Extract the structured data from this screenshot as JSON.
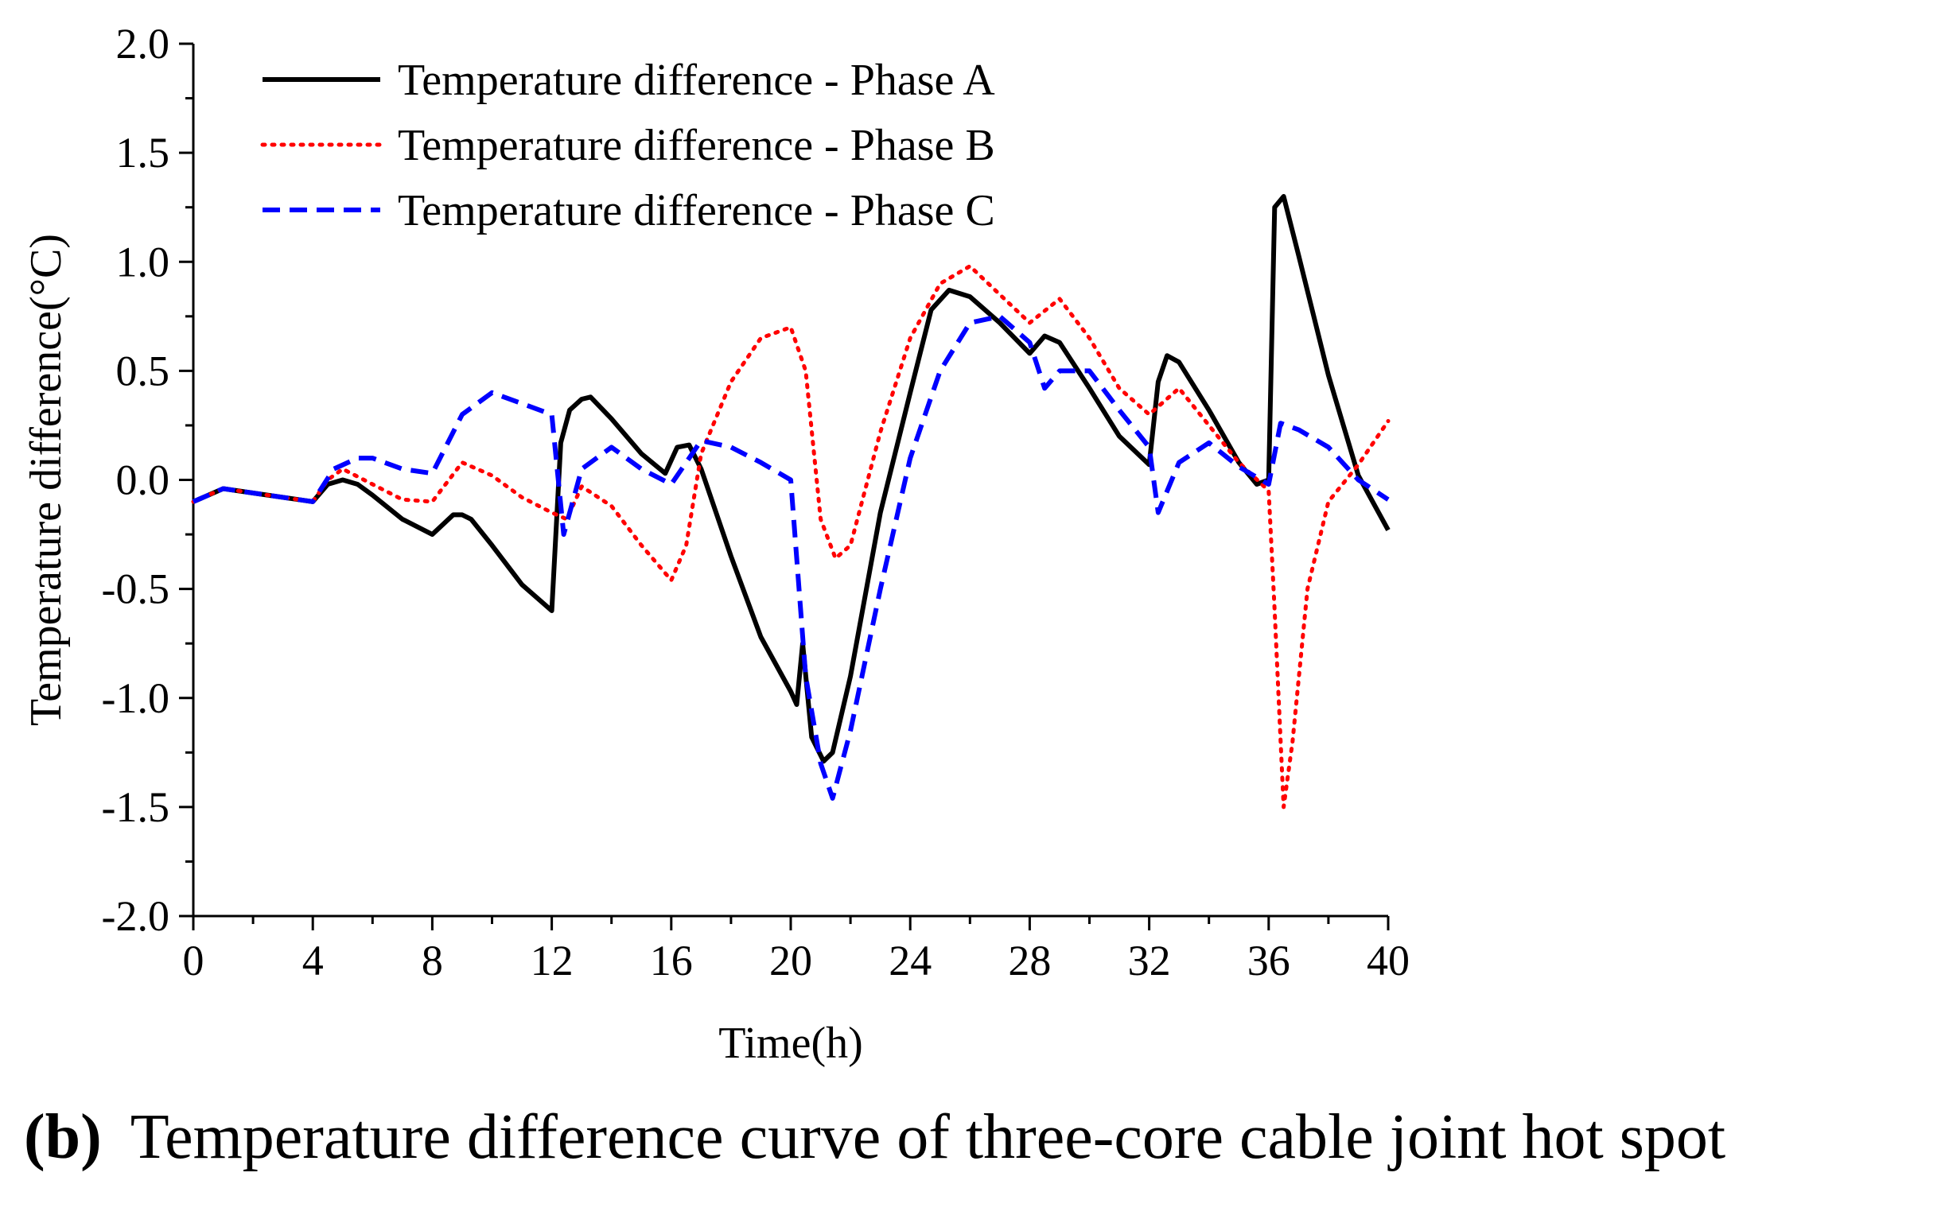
{
  "chart_data": {
    "type": "line",
    "title": "",
    "xlabel": "Time(h)",
    "ylabel": "Temperature difference(°C)",
    "xlim": [
      0,
      40
    ],
    "ylim": [
      -2.0,
      2.0
    ],
    "xticks": [
      0,
      4,
      8,
      12,
      16,
      20,
      24,
      28,
      32,
      36,
      40
    ],
    "xtick_labels": [
      "0",
      "4",
      "8",
      "12",
      "16",
      "20",
      "24",
      "28",
      "32",
      "36",
      "40"
    ],
    "yticks": [
      -2.0,
      -1.5,
      -1.0,
      -0.5,
      0.0,
      0.5,
      1.0,
      1.5,
      2.0
    ],
    "ytick_labels": [
      "-2.0",
      "-1.5",
      "-1.0",
      "-0.5",
      "0.0",
      "0.5",
      "1.0",
      "1.5",
      "2.0"
    ],
    "grid": false,
    "legend_position": "top-left",
    "series": [
      {
        "name": "Temperature difference - Phase A",
        "color": "#000000",
        "style": "solid",
        "points": [
          [
            0,
            -0.1
          ],
          [
            1,
            -0.04
          ],
          [
            2,
            -0.06
          ],
          [
            4,
            -0.1
          ],
          [
            4.5,
            -0.02
          ],
          [
            5,
            0.0
          ],
          [
            5.5,
            -0.02
          ],
          [
            6,
            -0.07
          ],
          [
            7,
            -0.18
          ],
          [
            8,
            -0.25
          ],
          [
            8.7,
            -0.16
          ],
          [
            9,
            -0.16
          ],
          [
            9.3,
            -0.18
          ],
          [
            10,
            -0.3
          ],
          [
            11,
            -0.48
          ],
          [
            12,
            -0.6
          ],
          [
            12.3,
            0.17
          ],
          [
            12.6,
            0.32
          ],
          [
            13,
            0.37
          ],
          [
            13.3,
            0.38
          ],
          [
            14,
            0.28
          ],
          [
            15,
            0.12
          ],
          [
            15.8,
            0.03
          ],
          [
            16.2,
            0.15
          ],
          [
            16.6,
            0.16
          ],
          [
            17,
            0.05
          ],
          [
            18,
            -0.35
          ],
          [
            19,
            -0.72
          ],
          [
            20,
            -0.97
          ],
          [
            20.2,
            -1.03
          ],
          [
            20.4,
            -0.75
          ],
          [
            20.7,
            -1.18
          ],
          [
            21.1,
            -1.29
          ],
          [
            21.4,
            -1.25
          ],
          [
            22,
            -0.9
          ],
          [
            23,
            -0.15
          ],
          [
            24,
            0.4
          ],
          [
            24.7,
            0.78
          ],
          [
            25.3,
            0.87
          ],
          [
            26,
            0.84
          ],
          [
            27,
            0.72
          ],
          [
            28,
            0.58
          ],
          [
            28.5,
            0.66
          ],
          [
            29,
            0.63
          ],
          [
            30,
            0.42
          ],
          [
            31,
            0.2
          ],
          [
            32,
            0.07
          ],
          [
            32.3,
            0.45
          ],
          [
            32.6,
            0.57
          ],
          [
            33,
            0.54
          ],
          [
            34,
            0.32
          ],
          [
            35,
            0.08
          ],
          [
            35.6,
            -0.02
          ],
          [
            36,
            0.0
          ],
          [
            36.2,
            1.25
          ],
          [
            36.5,
            1.3
          ],
          [
            37,
            1.03
          ],
          [
            38,
            0.48
          ],
          [
            39,
            0.02
          ],
          [
            40,
            -0.23
          ]
        ]
      },
      {
        "name": "Temperature difference - Phase B",
        "color": "#ff0000",
        "style": "dotted",
        "points": [
          [
            0,
            -0.1
          ],
          [
            1,
            -0.04
          ],
          [
            2,
            -0.06
          ],
          [
            4,
            -0.1
          ],
          [
            4.5,
            0.0
          ],
          [
            5,
            0.05
          ],
          [
            6,
            -0.02
          ],
          [
            7,
            -0.09
          ],
          [
            8,
            -0.1
          ],
          [
            9,
            0.08
          ],
          [
            10,
            0.02
          ],
          [
            11,
            -0.08
          ],
          [
            12,
            -0.15
          ],
          [
            12.5,
            -0.18
          ],
          [
            13,
            -0.03
          ],
          [
            14,
            -0.12
          ],
          [
            15,
            -0.3
          ],
          [
            16,
            -0.46
          ],
          [
            16.5,
            -0.3
          ],
          [
            17,
            0.12
          ],
          [
            18,
            0.45
          ],
          [
            19,
            0.65
          ],
          [
            20,
            0.7
          ],
          [
            20.5,
            0.5
          ],
          [
            21,
            -0.18
          ],
          [
            21.5,
            -0.36
          ],
          [
            22,
            -0.3
          ],
          [
            23,
            0.22
          ],
          [
            24,
            0.65
          ],
          [
            25,
            0.9
          ],
          [
            26,
            0.98
          ],
          [
            27,
            0.85
          ],
          [
            28,
            0.72
          ],
          [
            29,
            0.83
          ],
          [
            30,
            0.65
          ],
          [
            31,
            0.42
          ],
          [
            32,
            0.3
          ],
          [
            33,
            0.42
          ],
          [
            34,
            0.25
          ],
          [
            35,
            0.08
          ],
          [
            36,
            -0.05
          ],
          [
            36.2,
            -0.6
          ],
          [
            36.5,
            -1.5
          ],
          [
            36.8,
            -1.2
          ],
          [
            37.3,
            -0.5
          ],
          [
            38,
            -0.1
          ],
          [
            39,
            0.07
          ],
          [
            40,
            0.27
          ]
        ]
      },
      {
        "name": "Temperature difference - Phase C",
        "color": "#0000ff",
        "style": "dashed",
        "points": [
          [
            0,
            -0.1
          ],
          [
            1,
            -0.04
          ],
          [
            2,
            -0.06
          ],
          [
            4,
            -0.1
          ],
          [
            4.7,
            0.05
          ],
          [
            5.5,
            0.1
          ],
          [
            6,
            0.1
          ],
          [
            7,
            0.05
          ],
          [
            8,
            0.03
          ],
          [
            9,
            0.3
          ],
          [
            10,
            0.4
          ],
          [
            11,
            0.35
          ],
          [
            12,
            0.3
          ],
          [
            12.4,
            -0.25
          ],
          [
            13,
            0.05
          ],
          [
            14,
            0.15
          ],
          [
            15,
            0.05
          ],
          [
            16,
            -0.02
          ],
          [
            17,
            0.18
          ],
          [
            18,
            0.15
          ],
          [
            19,
            0.08
          ],
          [
            20,
            0.0
          ],
          [
            20.5,
            -0.9
          ],
          [
            21,
            -1.3
          ],
          [
            21.4,
            -1.46
          ],
          [
            22,
            -1.15
          ],
          [
            23,
            -0.5
          ],
          [
            24,
            0.1
          ],
          [
            25,
            0.5
          ],
          [
            26,
            0.72
          ],
          [
            27,
            0.75
          ],
          [
            28,
            0.63
          ],
          [
            28.5,
            0.42
          ],
          [
            29,
            0.5
          ],
          [
            30,
            0.5
          ],
          [
            31,
            0.32
          ],
          [
            32,
            0.15
          ],
          [
            32.3,
            -0.15
          ],
          [
            33,
            0.08
          ],
          [
            34,
            0.17
          ],
          [
            35,
            0.06
          ],
          [
            36,
            -0.02
          ],
          [
            36.4,
            0.26
          ],
          [
            37,
            0.23
          ],
          [
            38,
            0.15
          ],
          [
            39,
            0.0
          ],
          [
            40,
            -0.09
          ]
        ]
      }
    ]
  },
  "caption": {
    "label": "(b)",
    "text": "Temperature difference curve of three-core cable joint hot spot"
  }
}
